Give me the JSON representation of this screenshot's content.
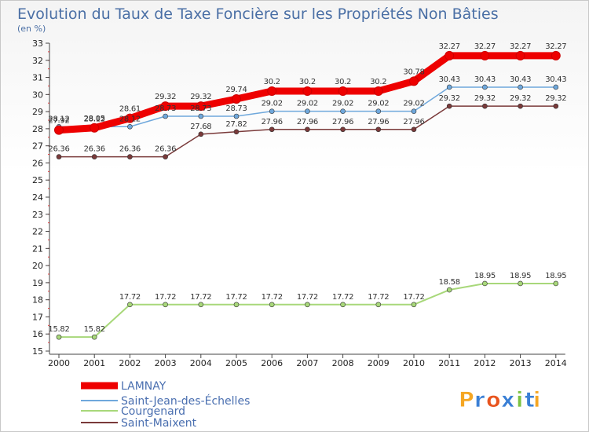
{
  "chart_data": {
    "type": "line",
    "title": "Evolution du Taux de Taxe Foncière sur les Propriétés Non Bâties",
    "subtitle": "(en %)",
    "x": [
      "2000",
      "2001",
      "2002",
      "2003",
      "2004",
      "2005",
      "2006",
      "2007",
      "2008",
      "2009",
      "2010",
      "2011",
      "2012",
      "2013",
      "2014"
    ],
    "ylim": [
      15,
      33
    ],
    "yticks": [
      "15",
      "16",
      "17",
      "18",
      "19",
      "20",
      "21",
      "22",
      "23",
      "24",
      "25",
      "26",
      "27",
      "28",
      "29",
      "30",
      "31",
      "32",
      "33"
    ],
    "grid": false,
    "legend_position": "bottom-left",
    "series": [
      {
        "name": "LAMNAY",
        "color": "#ee0000",
        "values": [
          27.92,
          28.05,
          28.61,
          29.32,
          29.32,
          29.74,
          30.2,
          30.2,
          30.2,
          30.2,
          30.78,
          32.27,
          32.27,
          32.27,
          32.27
        ],
        "labels": [
          "27.92",
          "28.05",
          "28.61",
          "29.32",
          "29.32",
          "29.74",
          "30.2",
          "30.2",
          "30.2",
          "30.2",
          "30.78",
          "32.27",
          "32.27",
          "32.27",
          "32.27"
        ]
      },
      {
        "name": "Saint-Jean-des-Échelles",
        "color": "#6fa8dc",
        "values": [
          28.12,
          28.12,
          28.12,
          28.73,
          28.73,
          28.73,
          29.02,
          29.02,
          29.02,
          29.02,
          29.02,
          30.43,
          30.43,
          30.43,
          30.43
        ],
        "labels": [
          "28.12",
          "28.12",
          "28.12",
          "28.73",
          "28.73",
          "28.73",
          "29.02",
          "29.02",
          "29.02",
          "29.02",
          "29.02",
          "30.43",
          "30.43",
          "30.43",
          "30.43"
        ]
      },
      {
        "name": "Courgenard",
        "color": "#a8d87a",
        "values": [
          15.82,
          15.82,
          17.72,
          17.72,
          17.72,
          17.72,
          17.72,
          17.72,
          17.72,
          17.72,
          17.72,
          18.58,
          18.95,
          18.95,
          18.95
        ],
        "labels": [
          "15.82",
          "15.82",
          "17.72",
          "17.72",
          "17.72",
          "17.72",
          "17.72",
          "17.72",
          "17.72",
          "17.72",
          "17.72",
          "18.58",
          "18.95",
          "18.95",
          "18.95"
        ]
      },
      {
        "name": "Saint-Maixent",
        "color": "#7a3a3a",
        "values": [
          26.36,
          26.36,
          26.36,
          26.36,
          27.68,
          27.82,
          27.96,
          27.96,
          27.96,
          27.96,
          27.96,
          29.32,
          29.32,
          29.32,
          29.32
        ],
        "labels": [
          "26.36",
          "26.36",
          "26.36",
          "26.36",
          "27.68",
          "27.82",
          "27.96",
          "27.96",
          "27.96",
          "27.96",
          "27.96",
          "29.32",
          "29.32",
          "29.32",
          "29.32"
        ]
      }
    ]
  },
  "logo": {
    "text": "Proxiti",
    "colors": [
      "#f5a623",
      "#3a7fd5",
      "#e8541e",
      "#3a7fd5",
      "#7cc242",
      "#3a7fd5",
      "#f5a623"
    ]
  }
}
